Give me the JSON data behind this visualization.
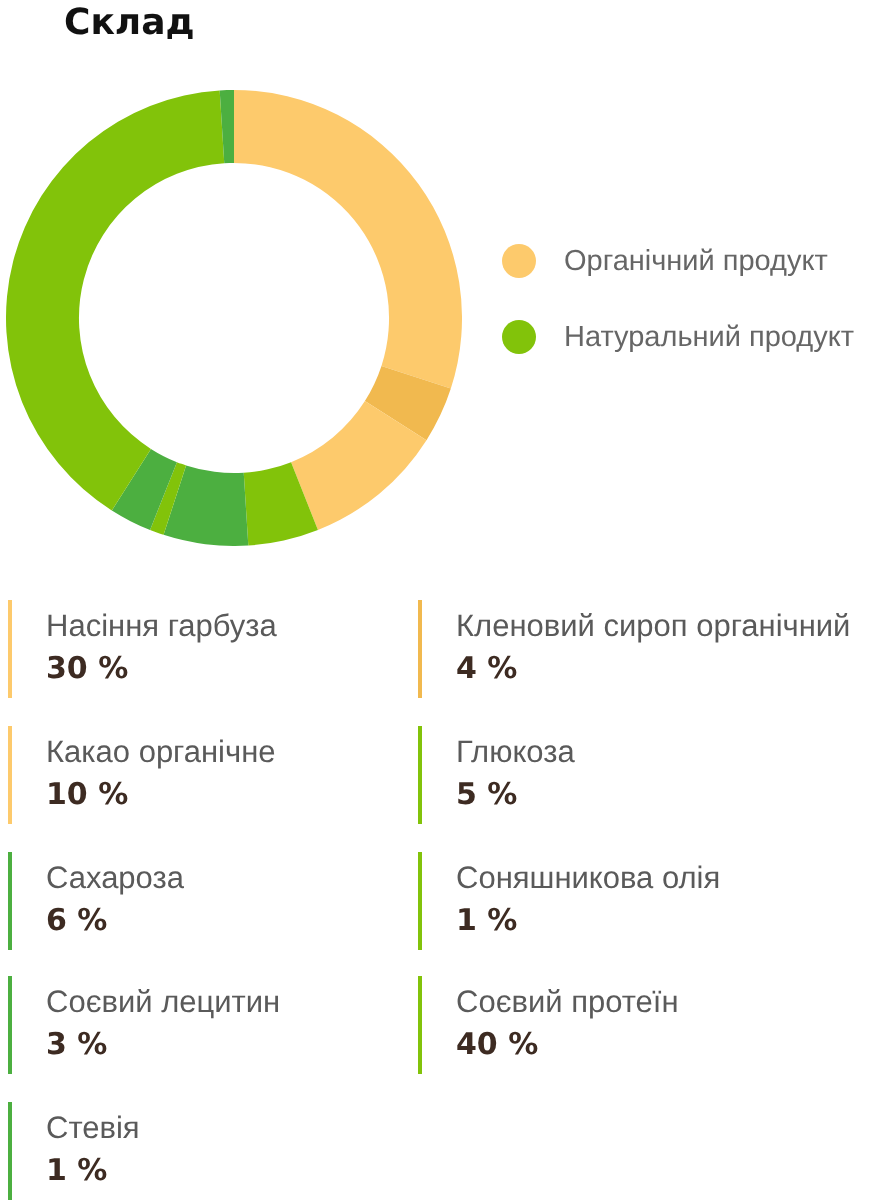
{
  "chart_data": {
    "type": "donut",
    "title": "Склад",
    "categories": [
      "Насіння гарбуза",
      "Кленовий сироп органічний",
      "Какао органічне",
      "Глюкоза",
      "Сахароза",
      "Соняшникова олія",
      "Соєвий лецитин",
      "Соєвий протеїн",
      "Стевія"
    ],
    "values": [
      30,
      4,
      10,
      5,
      6,
      1,
      3,
      40,
      1
    ],
    "colors": [
      "#fdca6c",
      "#f1b94f",
      "#fdca6c",
      "#82c30a",
      "#4caf40",
      "#82c30a",
      "#4caf40",
      "#82c30a",
      "#4caf40"
    ],
    "value_labels": [
      "30 %",
      "4 %",
      "10 %",
      "5 %",
      "6 %",
      "1 %",
      "3 %",
      "40 %",
      "1 %"
    ],
    "annotations": [
      "Органічний продукт",
      "Натуральний продукт"
    ],
    "legend": "bottom"
  }
}
